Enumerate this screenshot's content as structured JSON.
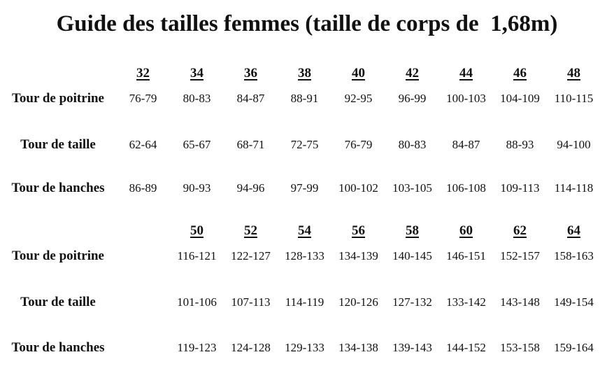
{
  "title": "Guide des tailles femmes (taille de corps de  1,68m)",
  "colors": {
    "text": "#111111",
    "background": "#ffffff"
  },
  "tables": [
    {
      "sizes": [
        "32",
        "34",
        "36",
        "38",
        "40",
        "42",
        "44",
        "46",
        "48"
      ],
      "rows": [
        {
          "label": "Tour de poitrine",
          "values": [
            "76-79",
            "80-83",
            "84-87",
            "88-91",
            "92-95",
            "96-99",
            "100-103",
            "104-109",
            "110-115"
          ]
        },
        {
          "label": "Tour de taille",
          "values": [
            "62-64",
            "65-67",
            "68-71",
            "72-75",
            "76-79",
            "80-83",
            "84-87",
            "88-93",
            "94-100"
          ]
        },
        {
          "label": "Tour de hanches",
          "values": [
            "86-89",
            "90-93",
            "94-96",
            "97-99",
            "100-102",
            "103-105",
            "106-108",
            "109-113",
            "114-118"
          ]
        }
      ]
    },
    {
      "sizes": [
        "50",
        "52",
        "54",
        "56",
        "58",
        "60",
        "62",
        "64"
      ],
      "rows": [
        {
          "label": "Tour de poitrine",
          "values": [
            "116-121",
            "122-127",
            "128-133",
            "134-139",
            "140-145",
            "146-151",
            "152-157",
            "158-163"
          ]
        },
        {
          "label": "Tour de taille",
          "values": [
            "101-106",
            "107-113",
            "114-119",
            "120-126",
            "127-132",
            "133-142",
            "143-148",
            "149-154"
          ]
        },
        {
          "label": "Tour de hanches",
          "values": [
            "119-123",
            "124-128",
            "129-133",
            "134-138",
            "139-143",
            "144-152",
            "153-158",
            "159-164"
          ]
        }
      ]
    }
  ]
}
